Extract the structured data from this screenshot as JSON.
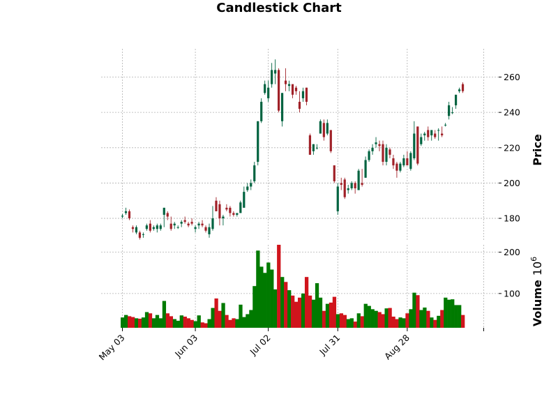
{
  "colors": {
    "up": "#006340",
    "down": "#a02128",
    "vol_up": "#007a00",
    "vol_down": "#d0141c",
    "grid": "#b0b0b0"
  },
  "chart_data": {
    "type": "candlestick",
    "title": "Candlestick Chart",
    "price_label": "Price",
    "volume_label": "Volume",
    "volume_exponent": "10",
    "volume_exponent_power": "6",
    "price_ylim": [
      167,
      276
    ],
    "price_ticks": [
      "180",
      "200",
      "220",
      "240",
      "260"
    ],
    "volume_ylim": [
      17,
      218
    ],
    "volume_ticks": [
      "100",
      "200"
    ],
    "x_tick_labels": [
      {
        "index": 0,
        "label": "May 03"
      },
      {
        "index": 21,
        "label": "Jun 03"
      },
      {
        "index": 42,
        "label": "Jul 02"
      },
      {
        "index": 62,
        "label": "Jul 31"
      },
      {
        "index": 82,
        "label": "Aug 28"
      },
      {
        "index": 104,
        "label": ""
      }
    ],
    "candles": [
      [
        181,
        182.5,
        180,
        181.5,
        42
      ],
      [
        183,
        186,
        182,
        184,
        48
      ],
      [
        184,
        185,
        179,
        180,
        45
      ],
      [
        175,
        176,
        172,
        174,
        43
      ],
      [
        172,
        176,
        171,
        175,
        40
      ],
      [
        172,
        173,
        168,
        169,
        39
      ],
      [
        171,
        172,
        169,
        171,
        42
      ],
      [
        174,
        177,
        173,
        176,
        55
      ],
      [
        177,
        179,
        172,
        173,
        52
      ],
      [
        174,
        176,
        173,
        175,
        40
      ],
      [
        174,
        177,
        172,
        176,
        48
      ],
      [
        174,
        177,
        173,
        176,
        40
      ],
      [
        182,
        186,
        175,
        186,
        82
      ],
      [
        183,
        184,
        179,
        181,
        52
      ],
      [
        177,
        181,
        173,
        174,
        45
      ],
      [
        176,
        178,
        174,
        177,
        38
      ],
      [
        175,
        176,
        174,
        175,
        34
      ],
      [
        177,
        179,
        175,
        178,
        47
      ],
      [
        179,
        181,
        177,
        178,
        44
      ],
      [
        177,
        178,
        175,
        176,
        40
      ],
      [
        178,
        180,
        176,
        177,
        36
      ],
      [
        174,
        176,
        172,
        175,
        33
      ],
      [
        176,
        178,
        174,
        177,
        47
      ],
      [
        177,
        179,
        175,
        176,
        30
      ],
      [
        175,
        176,
        172,
        173,
        28
      ],
      [
        171,
        177,
        169,
        175,
        38
      ],
      [
        174,
        187,
        173,
        180,
        65
      ],
      [
        190,
        192,
        184,
        184,
        88
      ],
      [
        188,
        190,
        176,
        180,
        58
      ],
      [
        180,
        182,
        176,
        181,
        77
      ],
      [
        186,
        188,
        184,
        185,
        48
      ],
      [
        186,
        187,
        181,
        183,
        36
      ],
      [
        183,
        184,
        181,
        182,
        40
      ],
      [
        182,
        183,
        181,
        183,
        38
      ],
      [
        183,
        190,
        183,
        189,
        73
      ],
      [
        186,
        198,
        186,
        195,
        43
      ],
      [
        196,
        200,
        195,
        198,
        50
      ],
      [
        198,
        202,
        196,
        200,
        60
      ],
      [
        201,
        212,
        200,
        210,
        118
      ],
      [
        212,
        235,
        210,
        235,
        204
      ],
      [
        235,
        248,
        234,
        246,
        165
      ],
      [
        251,
        258,
        250,
        256,
        150
      ],
      [
        248,
        258,
        246,
        254,
        175
      ],
      [
        256,
        268,
        254,
        264,
        158
      ],
      [
        262,
        270,
        256,
        264,
        110
      ],
      [
        264,
        265,
        240,
        241,
        218
      ],
      [
        235,
        251,
        232,
        251,
        140
      ],
      [
        258,
        265,
        252,
        256,
        128
      ],
      [
        255,
        258,
        252,
        256,
        108
      ],
      [
        256,
        255.5,
        248,
        250,
        95
      ],
      [
        254,
        255,
        250,
        252,
        80
      ],
      [
        246,
        252,
        240,
        242,
        90
      ],
      [
        248,
        254,
        246,
        252,
        100
      ],
      [
        254,
        254,
        244,
        246,
        140
      ],
      [
        227,
        228,
        216,
        216,
        95
      ],
      [
        218,
        222,
        216,
        222,
        85
      ],
      [
        220,
        222,
        219,
        220,
        125
      ],
      [
        228,
        236,
        228,
        235,
        90
      ],
      [
        234,
        236,
        224,
        226,
        58
      ],
      [
        228,
        236,
        227,
        234,
        75
      ],
      [
        230,
        230,
        217,
        218,
        78
      ],
      [
        210,
        210,
        200,
        201,
        92
      ],
      [
        184,
        200,
        182,
        198,
        50
      ],
      [
        200,
        203,
        196,
        199,
        52
      ],
      [
        202,
        203,
        191,
        192,
        48
      ],
      [
        196,
        199,
        194,
        197,
        38
      ],
      [
        197,
        201,
        196,
        200,
        40
      ],
      [
        200,
        201,
        194,
        197,
        32
      ],
      [
        196,
        208,
        196,
        207,
        52
      ],
      [
        200,
        208,
        198,
        199,
        45
      ],
      [
        203,
        215,
        203,
        213,
        75
      ],
      [
        213,
        219,
        212,
        218,
        70
      ],
      [
        218,
        222,
        216,
        220,
        62
      ],
      [
        222,
        226,
        220,
        223,
        58
      ],
      [
        222,
        224,
        218,
        221,
        55
      ],
      [
        222,
        224,
        210,
        212,
        50
      ],
      [
        212,
        222,
        210,
        220,
        64
      ],
      [
        219,
        220,
        214,
        216,
        65
      ],
      [
        214,
        216,
        208,
        210,
        44
      ],
      [
        211,
        212,
        203,
        207,
        38
      ],
      [
        207,
        212,
        206,
        211,
        42
      ],
      [
        210,
        216,
        209,
        214,
        40
      ],
      [
        214,
        218,
        210,
        210,
        52
      ],
      [
        208,
        218,
        207,
        217,
        62
      ],
      [
        214,
        235,
        213,
        228,
        102
      ],
      [
        232,
        232,
        210,
        211,
        96
      ],
      [
        222,
        228,
        221,
        226,
        60
      ],
      [
        227,
        229,
        224,
        228,
        66
      ],
      [
        230,
        232,
        224,
        226,
        58
      ],
      [
        227,
        230,
        224,
        230,
        42
      ],
      [
        228,
        230,
        225,
        226,
        36
      ],
      [
        230,
        231,
        224,
        230,
        46
      ],
      [
        228,
        232,
        226,
        227,
        60
      ],
      [
        233,
        234,
        232,
        233,
        90
      ],
      [
        238,
        246,
        236,
        244,
        85
      ],
      [
        240,
        243,
        239,
        240,
        86
      ],
      [
        244,
        250,
        242,
        250,
        72
      ],
      [
        252,
        254,
        251,
        253,
        72
      ],
      [
        256,
        257,
        251,
        252,
        48
      ]
    ]
  }
}
